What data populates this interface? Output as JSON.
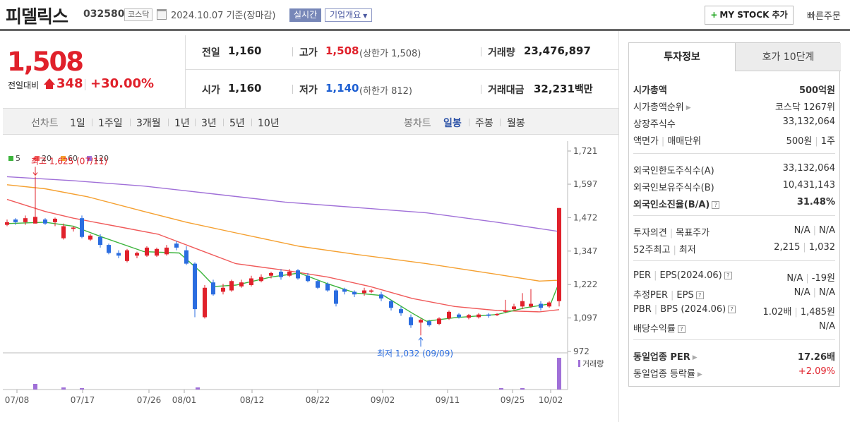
{
  "header": {
    "stock_name": "피델릭스",
    "stock_code": "032580",
    "market": "코스닥",
    "date_text": "2024.10.07  기준(장마감)",
    "realtime_label": "실시간",
    "company_label": "기업개요",
    "mystock_label": "MY STOCK 추가",
    "quick_order_label": "빠른주문"
  },
  "price": {
    "current": "1,508",
    "prev_label": "전일대비",
    "change": "348",
    "change_pct": "+30.00%",
    "up_color": "#e0212b"
  },
  "summary": {
    "prev_close_label": "전일",
    "prev_close": "1,160",
    "open_label": "시가",
    "open": "1,160",
    "high_label": "고가",
    "high": "1,508",
    "upper_limit": "(상한가 1,508)",
    "low_label": "저가",
    "low": "1,140",
    "lower_limit": "(하한가 812)",
    "volume_label": "거래량",
    "volume": "23,476,897",
    "amount_label": "거래대금",
    "amount": "32,231",
    "amount_unit": "백만"
  },
  "toolbar": {
    "line_chart_label": "선차트",
    "periods": [
      "1일",
      "1주일",
      "3개월",
      "1년",
      "3년",
      "5년",
      "10년"
    ],
    "candle_label": "봉차트",
    "candle_periods": [
      "일봉",
      "주봉",
      "월봉"
    ],
    "active_candle": "일봉"
  },
  "chart_data": {
    "type": "candlestick",
    "legend": [
      {
        "name": "5",
        "color": "#3cb43c"
      },
      {
        "name": "20",
        "color": "#f05a5a"
      },
      {
        "name": "60",
        "color": "#f5a030"
      },
      {
        "name": "120",
        "color": "#a070d8"
      }
    ],
    "y_ticks": [
      "1,721",
      "1,597",
      "1,472",
      "1,347",
      "1,222",
      "1,097",
      "972"
    ],
    "y_range": [
      972,
      1721
    ],
    "x_ticks": [
      "07/08",
      "07/17",
      "07/26",
      "08/01",
      "08/12",
      "08/22",
      "09/02",
      "09/11",
      "09/25",
      "10/02"
    ],
    "high_annotation": "최고 1,625 (07/11)",
    "low_annotation": "최저 1,032 (09/09)",
    "volume_label": "거래량"
  },
  "invest": {
    "tab_info": "투자정보",
    "tab_quote": "호가 10단계",
    "rows": [
      {
        "k": "시가총액",
        "v": "500억원"
      },
      {
        "k": "시가총액순위",
        "v": "코스닥 1267위"
      },
      {
        "k": "상장주식수",
        "v": "33,132,064"
      },
      {
        "k": "액면가",
        "k2": "매매단위",
        "v": "500원",
        "v2": "1주"
      },
      {
        "k": "외국인한도주식수(A)",
        "v": "33,132,064"
      },
      {
        "k": "외국인보유주식수(B)",
        "v": "10,431,143"
      },
      {
        "k": "외국인소진율(B/A)",
        "v": "31.48%"
      },
      {
        "k": "투자의견",
        "k2": "목표주가",
        "v": "N/A",
        "v2": "N/A"
      },
      {
        "k": "52주최고",
        "k2": "최저",
        "v": "2,215",
        "v2": "1,032"
      },
      {
        "k": "PER",
        "k2": "EPS(2024.06)",
        "v": "N/A",
        "v2": "-19원"
      },
      {
        "k": "추정PER",
        "k2": "EPS",
        "v": "N/A",
        "v2": "N/A"
      },
      {
        "k": "PBR",
        "k2": "BPS (2024.06)",
        "v": "1.02배",
        "v2": "1,485원"
      },
      {
        "k": "배당수익률",
        "v": "N/A"
      },
      {
        "k": "동일업종 PER",
        "v": "17.26배"
      },
      {
        "k": "동일업종 등락률",
        "v": "+2.09%"
      }
    ]
  }
}
